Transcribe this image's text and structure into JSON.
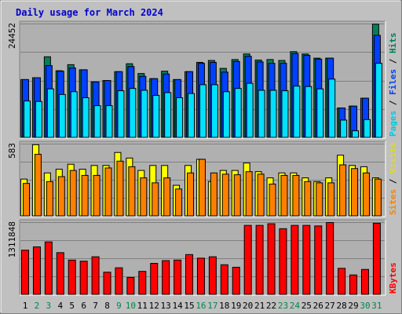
{
  "chart_data": {
    "type": "bar",
    "title": "Daily usage for March 2024",
    "categories": [
      "1",
      "2",
      "3",
      "4",
      "5",
      "6",
      "7",
      "8",
      "9",
      "10",
      "11",
      "12",
      "13",
      "14",
      "15",
      "16",
      "17",
      "18",
      "19",
      "20",
      "21",
      "22",
      "23",
      "24",
      "25",
      "26",
      "27",
      "28",
      "29",
      "30",
      "31"
    ],
    "weekend_days": [
      "2",
      "3",
      "9",
      "10",
      "16",
      "17",
      "23",
      "24",
      "30",
      "31"
    ],
    "colors": {
      "title": "#0000cc",
      "plot_bg": "#b0b0b0",
      "frame_bg": "#c0c0c0",
      "day_weekday": "#000000",
      "day_weekend": "#00864b",
      "hits": "#00805a",
      "files": "#0040ff",
      "pages": "#00e0ff",
      "visits": "#ffff00",
      "sites": "#ff8000",
      "kbytes": "#ff0000"
    },
    "panels": [
      {
        "key": "top",
        "ymax_label": "24452",
        "ylim": [
          0,
          24452
        ],
        "right_label": [
          {
            "text": "Pages",
            "color": "#00c8e0"
          },
          {
            "text": " / ",
            "color": "#000000"
          },
          {
            "text": "Files",
            "color": "#0040ff"
          },
          {
            "text": " / ",
            "color": "#000000"
          },
          {
            "text": "Hits",
            "color": "#00805a"
          }
        ],
        "series": [
          {
            "name": "Hits",
            "color": "#00805a",
            "values": [
              12500,
              12900,
              17400,
              14400,
              15700,
              14600,
              12000,
              12300,
              14200,
              15900,
              13800,
              12700,
              14300,
              12500,
              14200,
              16200,
              16600,
              14900,
              16800,
              18000,
              16700,
              16800,
              16600,
              18500,
              18000,
              17100,
              17100,
              6400,
              6800,
              8500,
              24400
            ]
          },
          {
            "name": "Files",
            "color": "#0040ff",
            "values": [
              12500,
              12900,
              15500,
              14300,
              15000,
              14600,
              12000,
              12300,
              14200,
              15300,
              13200,
              12700,
              13700,
              12500,
              14200,
              16000,
              16200,
              14100,
              16400,
              17500,
              16300,
              16000,
              16000,
              18100,
              17700,
              16900,
              17100,
              6400,
              6800,
              8500,
              22000
            ]
          },
          {
            "name": "Pages",
            "color": "#00e0ff",
            "values": [
              7900,
              7800,
              10500,
              9300,
              9900,
              8600,
              6900,
              6900,
              10100,
              10600,
              10200,
              9100,
              9700,
              8600,
              9500,
              11400,
              11400,
              9900,
              10600,
              11700,
              10200,
              10200,
              10100,
              11100,
              11000,
              10500,
              12600,
              3800,
              1500,
              3900,
              16000
            ]
          }
        ]
      },
      {
        "key": "middle",
        "ymax_label": "583",
        "ylim": [
          0,
          583
        ],
        "right_label": [
          {
            "text": "Sites",
            "color": "#ff8000"
          },
          {
            "text": " / ",
            "color": "#000000"
          },
          {
            "text": "Visits",
            "color": "#e0e000"
          }
        ],
        "series": [
          {
            "name": "Visits",
            "color": "#ffff00",
            "values": [
              300,
              578,
              350,
              380,
              420,
              380,
              410,
              410,
              515,
              470,
              370,
              410,
              410,
              250,
              410,
              460,
              280,
              370,
              370,
              430,
              360,
              310,
              350,
              350,
              310,
              280,
              310,
              493,
              410,
              400,
              310
            ]
          },
          {
            "name": "Sites",
            "color": "#ff8000",
            "values": [
              265,
              500,
              280,
              320,
              370,
              330,
              330,
              390,
              445,
              400,
              310,
              270,
              310,
              220,
              350,
              460,
              350,
              340,
              335,
              360,
              340,
              260,
              330,
              330,
              280,
              270,
              270,
              415,
              385,
              350,
              300
            ]
          }
        ]
      },
      {
        "key": "bottom",
        "ymax_label": "1311848",
        "ylim": [
          0,
          1311848
        ],
        "right_label": [
          {
            "text": "KBytes",
            "color": "#ff0000"
          }
        ],
        "series": [
          {
            "name": "KBytes",
            "color": "#ff0000",
            "values": [
              810000,
              870000,
              960000,
              765000,
              630000,
              610000,
              690000,
              410000,
              490000,
              315000,
              425000,
              570000,
              620000,
              630000,
              730000,
              665000,
              690000,
              545000,
              500000,
              1260000,
              1260000,
              1290000,
              1200000,
              1260000,
              1260000,
              1250000,
              1311848,
              480000,
              360000,
              460000,
              1300000
            ]
          }
        ]
      }
    ]
  }
}
